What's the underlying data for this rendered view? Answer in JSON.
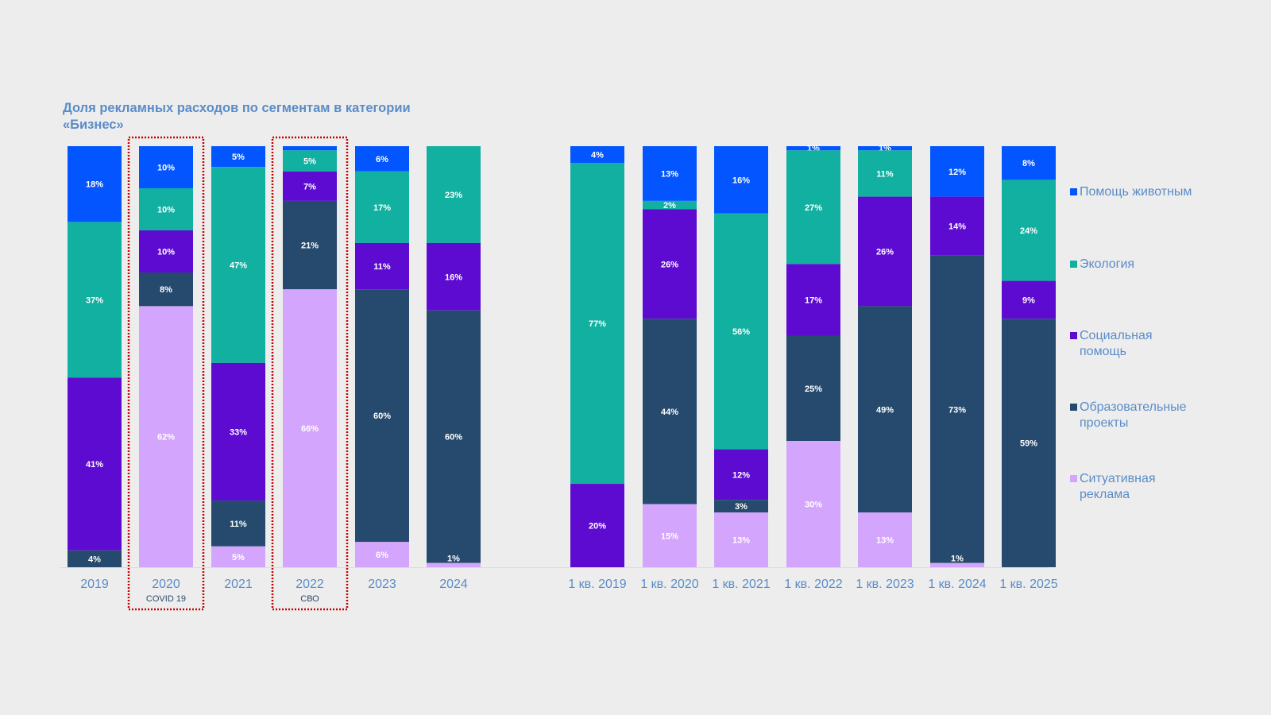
{
  "title": "Доля рекламных расходов по сегментам в категории «Бизнес»",
  "colors": {
    "animals": "#0356ff",
    "ecology": "#12b0a0",
    "social": "#5e0bd1",
    "education": "#264a6d",
    "situational": "#d4a5fc",
    "axis_label": "#5a8cc8",
    "annotation_text": "#2c4a6b",
    "highlight_border": "#cc0000"
  },
  "legend": [
    {
      "key": "animals",
      "label": "Помощь животным"
    },
    {
      "key": "ecology",
      "label": "Экология"
    },
    {
      "key": "social",
      "label": "Социальная помощь"
    },
    {
      "key": "education",
      "label": "Образовательные проекты"
    },
    {
      "key": "situational",
      "label": "Ситуативная реклама"
    }
  ],
  "chart_data": {
    "type": "bar",
    "stacked": true,
    "title": "Доля рекламных расходов по сегментам в категории «Бизнес»",
    "ylim": [
      0,
      100
    ],
    "unit": "%",
    "legend_position": "right",
    "categories": [
      "2019",
      "2020",
      "2021",
      "2022",
      "2023",
      "2024",
      "1 кв. 2019",
      "1 кв. 2020",
      "1 кв. 2021",
      "1 кв. 2022",
      "1 кв. 2023",
      "1 кв. 2024",
      "1 кв. 2025"
    ],
    "annotations": [
      {
        "category": "2020",
        "text": "COVID 19",
        "highlight": true
      },
      {
        "category": "2022",
        "text": "СВО",
        "highlight": true
      }
    ],
    "series": [
      {
        "name": "Помощь животным",
        "key": "animals",
        "values": [
          18,
          10,
          5,
          1,
          6,
          0,
          4,
          13,
          16,
          1,
          1,
          12,
          8
        ],
        "labels": [
          "18%",
          "10%",
          "5%",
          "",
          "6%",
          "",
          "4%",
          "13%",
          "16%",
          "1%",
          "1%",
          "12%",
          "8%"
        ]
      },
      {
        "name": "Экология",
        "key": "ecology",
        "values": [
          37,
          10,
          47,
          5,
          17,
          23,
          77,
          2,
          56,
          27,
          11,
          0,
          24
        ],
        "labels": [
          "37%",
          "10%",
          "47%",
          "5%",
          "17%",
          "23%",
          "77%",
          "2%",
          "56%",
          "27%",
          "11%",
          "",
          "24%"
        ]
      },
      {
        "name": "Социальная помощь",
        "key": "social",
        "values": [
          41,
          10,
          33,
          7,
          11,
          16,
          20,
          26,
          12,
          17,
          26,
          14,
          9
        ],
        "labels": [
          "41%",
          "10%",
          "33%",
          "7%",
          "11%",
          "16%",
          "20%",
          "26%",
          "12%",
          "17%",
          "26%",
          "14%",
          "9%"
        ]
      },
      {
        "name": "Образовательные проекты",
        "key": "education",
        "values": [
          4,
          8,
          11,
          21,
          60,
          60,
          0,
          44,
          3,
          25,
          49,
          73,
          59
        ],
        "labels": [
          "4%",
          "8%",
          "11%",
          "21%",
          "60%",
          "60%",
          "",
          "44%",
          "3%",
          "25%",
          "49%",
          "73%",
          "59%"
        ]
      },
      {
        "name": "Ситуативная реклама",
        "key": "situational",
        "values": [
          0,
          62,
          5,
          66,
          6,
          1,
          0,
          15,
          13,
          30,
          13,
          1,
          0
        ],
        "labels": [
          "",
          "62%",
          "5%",
          "66%",
          "6%",
          "1%",
          "",
          "15%",
          "13%",
          "30%",
          "13%",
          "1%",
          ""
        ]
      }
    ]
  }
}
